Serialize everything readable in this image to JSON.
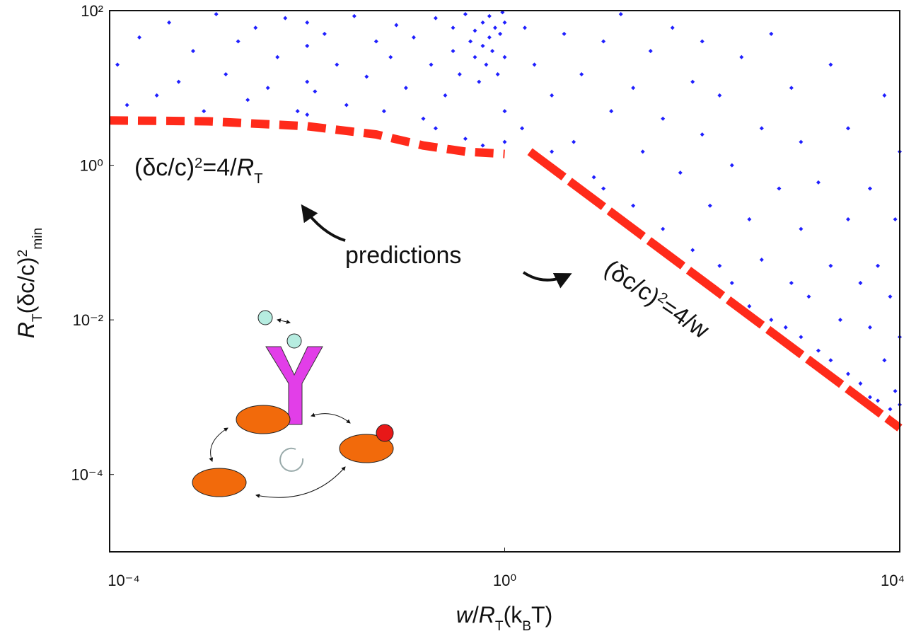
{
  "chart_data": {
    "type": "scatter",
    "xscale": "log",
    "yscale": "log",
    "xlim": [
      0.0001,
      10000
    ],
    "ylim": [
      1e-05,
      100
    ],
    "xticks": [
      {
        "value": 0.0001,
        "label": "10⁻⁴"
      },
      {
        "value": 1,
        "label": "10⁰"
      },
      {
        "value": 10000,
        "label": "10⁴"
      }
    ],
    "yticks": [
      {
        "value": 0.0001,
        "label": "10⁻⁴"
      },
      {
        "value": 0.01,
        "label": "10⁻²"
      },
      {
        "value": 1,
        "label": "10⁰"
      },
      {
        "value": 100,
        "label": "10²"
      }
    ],
    "xlabel": [
      {
        "text": "w",
        "style": "italic"
      },
      {
        "text": "/",
        "style": "normal"
      },
      {
        "text": "R",
        "style": "italic"
      },
      {
        "text": "T",
        "style": "sub"
      },
      {
        "text": "(k",
        "style": "normal"
      },
      {
        "text": "B",
        "style": "sub"
      },
      {
        "text": "T)",
        "style": "normal"
      }
    ],
    "ylabel": [
      {
        "text": "R",
        "style": "italic"
      },
      {
        "text": "T",
        "style": "sub"
      },
      {
        "text": "(δc/c)",
        "style": "normal"
      },
      {
        "text": "2",
        "style": "sup"
      },
      {
        "text": "min",
        "style": "sub"
      }
    ],
    "color": "#1f1fff",
    "x": [
      0.00012,
      0.00015,
      0.0002,
      0.0003,
      0.0004,
      0.0005,
      0.0007,
      0.0009,
      0.0012,
      0.0015,
      0.002,
      0.0025,
      0.003,
      0.004,
      0.005,
      0.006,
      0.008,
      0.01,
      0.01,
      0.01,
      0.01,
      0.012,
      0.015,
      0.02,
      0.025,
      0.03,
      0.04,
      0.05,
      0.06,
      0.07,
      0.08,
      0.1,
      0.12,
      0.15,
      0.18,
      0.2,
      0.25,
      0.3,
      0.3,
      0.35,
      0.4,
      0.45,
      0.5,
      0.5,
      0.55,
      0.6,
      0.6,
      0.65,
      0.7,
      0.7,
      0.75,
      0.8,
      0.85,
      0.9,
      0.95,
      1,
      1,
      1,
      1,
      0.2,
      0.4,
      0.6,
      1.5,
      1.6,
      2,
      3,
      3,
      4,
      5,
      6,
      8,
      10,
      10,
      12,
      15,
      20,
      20,
      25,
      30,
      40,
      40,
      50,
      60,
      80,
      80,
      100,
      100,
      120,
      150,
      150,
      200,
      200,
      250,
      300,
      300,
      400,
      400,
      500,
      500,
      600,
      700,
      800,
      800,
      1000,
      1000,
      1000,
      1200,
      1500,
      1500,
      2000,
      2000,
      2000,
      2500,
      3000,
      3000,
      3000,
      4000,
      4000,
      5000,
      5000,
      5000,
      6000,
      6000,
      7000,
      7000,
      8000,
      8000,
      9000,
      9000,
      10000,
      10000,
      10000
    ],
    "values": [
      20,
      6,
      45,
      8,
      70,
      12,
      30,
      5,
      90,
      15,
      40,
      7,
      60,
      10,
      25,
      80,
      5,
      4.5,
      12,
      35,
      70,
      9,
      50,
      20,
      6,
      85,
      14,
      40,
      5,
      25,
      65,
      10,
      45,
      4,
      20,
      80,
      8,
      30,
      60,
      15,
      90,
      40,
      25,
      55,
      12,
      70,
      35,
      20,
      45,
      85,
      30,
      60,
      15,
      50,
      95,
      25,
      70,
      5,
      2,
      3,
      2.2,
      1.8,
      3,
      60,
      20,
      8,
      1.5,
      50,
      2,
      15,
      0.7,
      40,
      0.5,
      5,
      90,
      0.3,
      10,
      1.5,
      30,
      0.15,
      4,
      60,
      0.8,
      0.08,
      12,
      2.5,
      40,
      0.3,
      0.05,
      8,
      1,
      0.03,
      25,
      0.2,
      0.015,
      3,
      0.06,
      0.01,
      50,
      0.5,
      0.008,
      10,
      0.03,
      0.006,
      0.15,
      2,
      0.02,
      0.004,
      0.6,
      0.003,
      0.05,
      20,
      0.01,
      0.002,
      0.2,
      3,
      0.0015,
      0.03,
      0.001,
      0.008,
      0.5,
      0.0009,
      0.05,
      0.003,
      8,
      0.0007,
      0.02,
      0.0012,
      0.2,
      0.0008,
      0.006,
      1.5
    ],
    "fit_lines": [
      {
        "x": [
          0.0001,
          0.001,
          0.01,
          0.05,
          0.15,
          0.4,
          1
        ],
        "values": [
          3.8,
          3.7,
          3.2,
          2.5,
          1.8,
          1.5,
          1.4
        ],
        "color": "#ff2a1a",
        "dash": "short"
      },
      {
        "x": [
          1.8,
          10000
        ],
        "values": [
          1.5,
          0.0004
        ],
        "color": "#ff2a1a",
        "dash": "long"
      }
    ],
    "annotations": [
      [
        {
          "text": "(δc/c)",
          "style": "normal"
        },
        {
          "text": "2",
          "style": "sup"
        },
        {
          "text": "=4/",
          "style": "normal"
        },
        {
          "text": "R",
          "style": "italic"
        },
        {
          "text": "T",
          "style": "sub"
        }
      ],
      [
        {
          "text": "predictions",
          "style": "normal"
        }
      ],
      [
        {
          "text": "(δc/c)",
          "style": "normal"
        },
        {
          "text": "2",
          "style": "sup"
        },
        {
          "text": "=4/w",
          "style": "normal"
        }
      ]
    ]
  }
}
